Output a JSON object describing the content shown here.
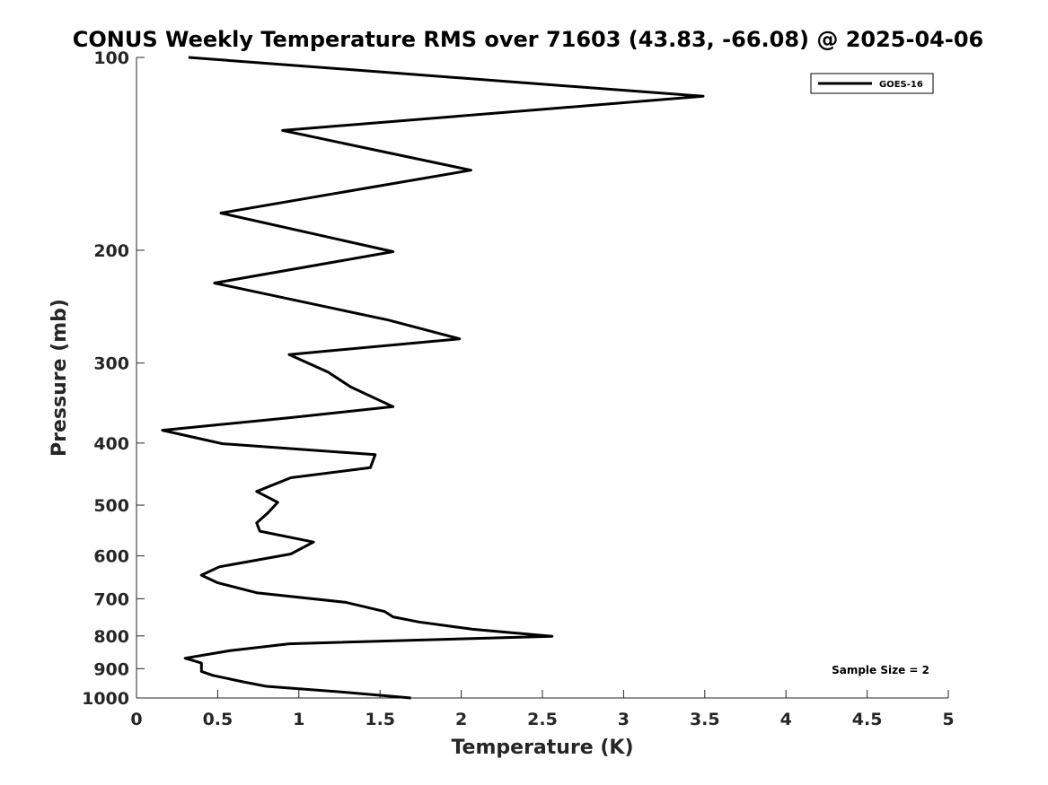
{
  "chart_data": {
    "type": "line",
    "title": "CONUS Weekly Temperature RMS over 71603 (43.83, -66.08) @ 2025-04-06",
    "xlabel": "Temperature (K)",
    "ylabel": "Pressure (mb)",
    "xlim": [
      0,
      5
    ],
    "ylim": [
      1000,
      100
    ],
    "y_scale": "log",
    "y_reversed": true,
    "xticks": [
      "0",
      "0.5",
      "1",
      "1.5",
      "2",
      "2.5",
      "3",
      "3.5",
      "4",
      "4.5",
      "5"
    ],
    "yticks": [
      "100",
      "200",
      "300",
      "400",
      "500",
      "600",
      "700",
      "800",
      "900",
      "1000"
    ],
    "grid": false,
    "legend_position": "top-right",
    "annotation": "Sample Size = 2",
    "series": [
      {
        "name": "GOES-16",
        "color": "#000000",
        "points": [
          [
            0.32,
            100
          ],
          [
            3.49,
            115
          ],
          [
            0.9,
            130
          ],
          [
            2.06,
            150
          ],
          [
            0.52,
            175
          ],
          [
            1.58,
            201
          ],
          [
            0.48,
            225
          ],
          [
            1.55,
            257
          ],
          [
            1.99,
            275
          ],
          [
            0.94,
            291
          ],
          [
            1.18,
            310
          ],
          [
            1.32,
            327
          ],
          [
            1.58,
            351
          ],
          [
            0.95,
            365
          ],
          [
            0.16,
            382
          ],
          [
            0.53,
            401
          ],
          [
            1.47,
            417
          ],
          [
            1.44,
            437
          ],
          [
            0.95,
            453
          ],
          [
            0.74,
            476
          ],
          [
            0.87,
            495
          ],
          [
            0.81,
            514
          ],
          [
            0.74,
            533
          ],
          [
            0.76,
            549
          ],
          [
            1.09,
            571
          ],
          [
            0.95,
            596
          ],
          [
            0.51,
            624
          ],
          [
            0.4,
            643
          ],
          [
            0.5,
            661
          ],
          [
            0.74,
            685
          ],
          [
            1.29,
            709
          ],
          [
            1.53,
            733
          ],
          [
            1.58,
            747
          ],
          [
            1.74,
            761
          ],
          [
            2.07,
            781
          ],
          [
            2.56,
            801
          ],
          [
            0.94,
            823
          ],
          [
            0.57,
            844
          ],
          [
            0.3,
            867
          ],
          [
            0.4,
            882
          ],
          [
            0.4,
            909
          ],
          [
            0.47,
            922
          ],
          [
            0.67,
            945
          ],
          [
            0.8,
            959
          ],
          [
            1.25,
            978
          ],
          [
            1.69,
            1000
          ]
        ]
      }
    ]
  }
}
